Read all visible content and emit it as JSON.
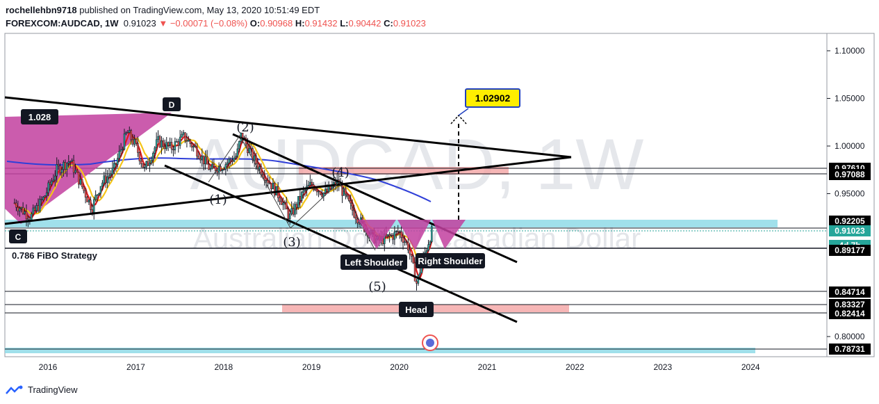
{
  "header": {
    "publisher": "rochellehbn9718",
    "published_text": "published on TradingView.com, May 13, 2020 10:51:49 EDT",
    "symbol": "FOREXCOM:AUDCAD, 1W",
    "price": "0.91023",
    "change": "▼ −0.00071 (−0.08%)",
    "open_label": "O:",
    "open": "0.90968",
    "high_label": "H:",
    "high": "0.91432",
    "low_label": "L:",
    "low": "0.90442",
    "close_label": "C:",
    "close": "0.91023"
  },
  "watermark": {
    "title": "AUDCAD, 1W",
    "subtitle": "Australian Dollar / Canadian Dollar"
  },
  "footer": {
    "brand": "TradingView"
  },
  "strategy_label": "0.786 FiBO Strategy",
  "colors": {
    "pattern_fill": "#c2409f",
    "cyan_zone": "#8fdbe8",
    "pink_zone": "#f4a4a4",
    "ma_yellow": "#f5c518",
    "ma_red": "#e0191b",
    "ma_blue": "#2f3fd8",
    "up": "#26a69a",
    "down": "#ef5350",
    "callout": "#ffee00"
  },
  "chart_data": {
    "type": "candlestick",
    "x_axis": {
      "tick_labels": [
        "2016",
        "2017",
        "2018",
        "2019",
        "2020",
        "2021",
        "2022",
        "2023",
        "2024"
      ]
    },
    "y_axis": {
      "range": [
        0.775,
        1.115
      ],
      "tick_labels": [
        "1.10000",
        "1.05000",
        "1.00000",
        "0.95000",
        "0.80000"
      ]
    },
    "price_tags": [
      {
        "value": 0.9761,
        "label": "0.97610",
        "color": "#000000"
      },
      {
        "value": 0.9708,
        "label": "0.97088",
        "color": "#000000"
      },
      {
        "value": 0.92205,
        "label": "0.92205",
        "color": "#000000"
      },
      {
        "value": 0.91023,
        "label": "0.91023",
        "color": "#26a69a"
      },
      {
        "value": 0.898,
        "label": "4d 7h",
        "color": "#26a69a"
      },
      {
        "value": 0.8918,
        "label": "0.89177",
        "color": "#000000"
      },
      {
        "value": 0.84714,
        "label": "0.84714",
        "color": "#000000"
      },
      {
        "value": 0.83327,
        "label": "0.83327",
        "color": "#000000"
      },
      {
        "value": 0.82414,
        "label": "0.82414",
        "color": "#000000"
      },
      {
        "value": 0.78731,
        "label": "0.78731",
        "color": "#000000"
      }
    ],
    "annotations": {
      "callout_target": "1.02902",
      "pattern_label": "1.028",
      "point_c": "C",
      "point_d": "D",
      "waves": [
        "(1)",
        "(2)",
        "(3)",
        "(4)",
        "(5)"
      ],
      "left_shoulder": "Left Shoulder",
      "right_shoulder": "Right Shoulder",
      "head": "Head"
    },
    "price_path": [
      [
        2015.6,
        0.942
      ],
      [
        2015.8,
        0.925
      ],
      [
        2015.95,
        0.945
      ],
      [
        2016.1,
        0.975
      ],
      [
        2016.25,
        0.985
      ],
      [
        2016.4,
        0.955
      ],
      [
        2016.5,
        0.935
      ],
      [
        2016.6,
        0.96
      ],
      [
        2016.75,
        0.975
      ],
      [
        2016.9,
        1.015
      ],
      [
        2017.0,
        1.0
      ],
      [
        2017.1,
        0.975
      ],
      [
        2017.25,
        1.005
      ],
      [
        2017.4,
        0.998
      ],
      [
        2017.55,
        1.01
      ],
      [
        2017.7,
        0.995
      ],
      [
        2017.85,
        0.975
      ],
      [
        2018.0,
        0.98
      ],
      [
        2018.15,
        0.99
      ],
      [
        2018.2,
        1.012
      ],
      [
        2018.35,
        0.985
      ],
      [
        2018.5,
        0.965
      ],
      [
        2018.65,
        0.945
      ],
      [
        2018.75,
        0.925
      ],
      [
        2018.9,
        0.95
      ],
      [
        2019.0,
        0.96
      ],
      [
        2019.15,
        0.95
      ],
      [
        2019.3,
        0.962
      ],
      [
        2019.45,
        0.935
      ],
      [
        2019.6,
        0.915
      ],
      [
        2019.75,
        0.9
      ],
      [
        2019.9,
        0.905
      ],
      [
        2020.0,
        0.91
      ],
      [
        2020.1,
        0.895
      ],
      [
        2020.2,
        0.855
      ],
      [
        2020.25,
        0.875
      ],
      [
        2020.3,
        0.89
      ],
      [
        2020.35,
        0.905
      ],
      [
        2020.37,
        0.91
      ]
    ]
  }
}
